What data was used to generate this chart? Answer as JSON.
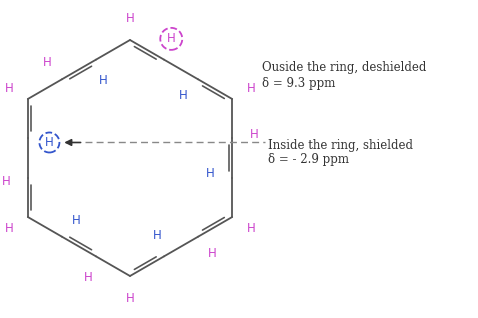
{
  "background_color": "#ffffff",
  "outer_H_color": "#cc44cc",
  "inner_H_color": "#3355cc",
  "bond_color": "#555555",
  "outside_circle_color": "#cc44cc",
  "inside_circle_color": "#3355cc",
  "annotation_color": "#333333",
  "outside_label_line1": "Ouside the ring, deshielded",
  "outside_label_line2": "δ = 9.3 ppm",
  "inside_label_line1": "Inside the ring, shielded",
  "inside_label_line2": "δ = - 2.9 ppm",
  "figwidth": 4.78,
  "figheight": 3.18,
  "dpi": 100
}
